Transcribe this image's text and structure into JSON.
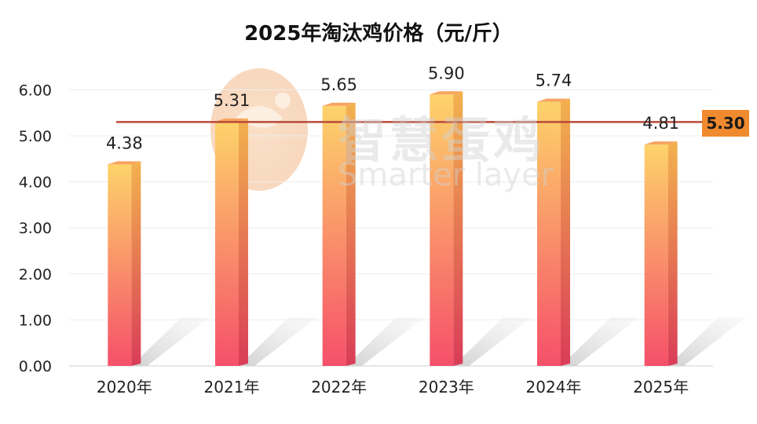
{
  "chart_data": {
    "type": "bar",
    "title": "2025年淘汰鸡价格（元/斤）",
    "categories": [
      "2020年",
      "2021年",
      "2022年",
      "2023年",
      "2024年",
      "2025年"
    ],
    "values": [
      4.38,
      5.31,
      5.65,
      5.9,
      5.74,
      4.81
    ],
    "value_labels": [
      "4.38",
      "5.31",
      "5.65",
      "5.90",
      "5.74",
      "4.81"
    ],
    "y_ticks": [
      "0.00",
      "1.00",
      "2.00",
      "3.00",
      "4.00",
      "5.00",
      "6.00"
    ],
    "ylim": [
      0,
      6.5
    ],
    "grid": true,
    "reference_line": {
      "value": 5.3,
      "label": "5.30",
      "color": "#b84a3a",
      "label_bg": "#f08a2e"
    },
    "bar_gradient": {
      "top": "#fdd36a",
      "bottom": "#f6506a"
    },
    "xlabel": "",
    "ylabel": ""
  },
  "watermark": {
    "cn": "智慧蛋鸡",
    "en": "Smarter layer"
  }
}
